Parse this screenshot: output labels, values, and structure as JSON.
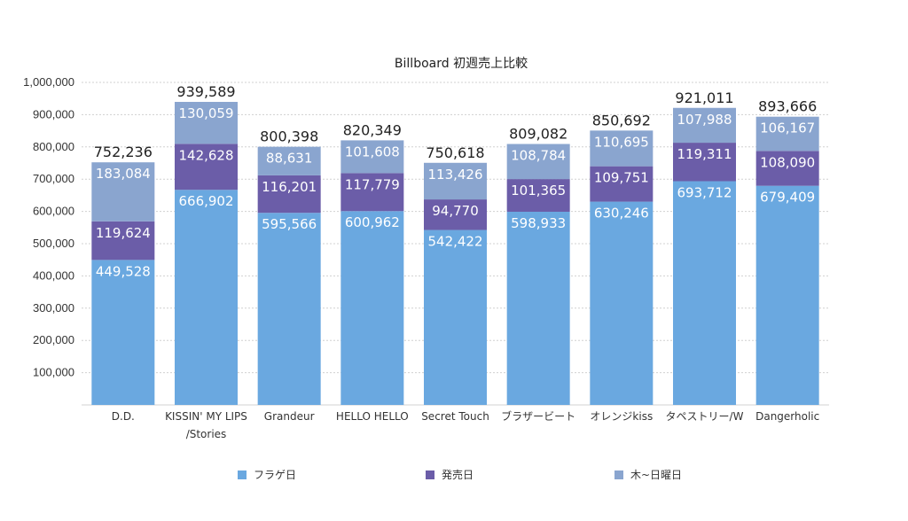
{
  "chart_data": {
    "type": "bar",
    "stacked": true,
    "title": "Billboard 初週売上比較",
    "categories": [
      [
        "D.D."
      ],
      [
        "KISSIN' MY LIPS",
        "/Stories"
      ],
      [
        "Grandeur"
      ],
      [
        "HELLO HELLO"
      ],
      [
        "Secret Touch"
      ],
      [
        "ブラザービート"
      ],
      [
        "オレンジkiss"
      ],
      [
        "タペストリー/W"
      ],
      [
        "Dangerholic"
      ]
    ],
    "series": [
      {
        "name": "フラゲ日",
        "color": "#6aa8e0",
        "values": [
          449528,
          666902,
          595566,
          600962,
          542422,
          598933,
          630246,
          693712,
          679409
        ],
        "labels": [
          "449,528",
          "666,902",
          "595,566",
          "600,962",
          "542,422",
          "598,933",
          "630,246",
          "693,712",
          "679,409"
        ]
      },
      {
        "name": "発売日",
        "color": "#6b5da8",
        "values": [
          119624,
          142628,
          116201,
          117779,
          94770,
          101365,
          109751,
          119311,
          108090
        ],
        "labels": [
          "119,624",
          "142,628",
          "116,201",
          "117,779",
          "94,770",
          "101,365",
          "109,751",
          "119,311",
          "108,090"
        ]
      },
      {
        "name": "木~日曜日",
        "color": "#8aa5cf",
        "values": [
          183084,
          130059,
          88631,
          101608,
          113426,
          108784,
          110695,
          107988,
          106167
        ],
        "labels": [
          "183,084",
          "130,059",
          "88,631",
          "101,608",
          "113,426",
          "108,784",
          "110,695",
          "107,988",
          "106,167"
        ]
      }
    ],
    "totals": [
      752236,
      939589,
      800398,
      820349,
      750618,
      809082,
      850692,
      921011,
      893666
    ],
    "total_labels": [
      "752,236",
      "939,589",
      "800,398",
      "820,349",
      "750,618",
      "809,082",
      "850,692",
      "921,011",
      "893,666"
    ],
    "ylim": [
      0,
      1000000
    ],
    "yticks": [
      100000,
      200000,
      300000,
      400000,
      500000,
      600000,
      700000,
      800000,
      900000,
      1000000
    ],
    "ytick_labels": [
      "100,000",
      "200,000",
      "300,000",
      "400,000",
      "500,000",
      "600,000",
      "700,000",
      "800,000",
      "900,000",
      "1,000,000"
    ],
    "grid": true,
    "legend_position": "bottom"
  }
}
